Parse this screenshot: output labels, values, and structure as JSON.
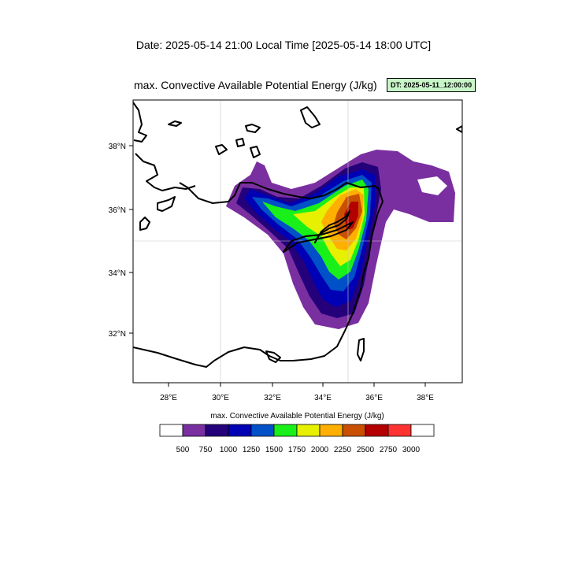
{
  "header": {
    "date_line": "Date: 2025-05-14  21:00 Local Time [2025-05-14  18:00 UTC]",
    "map_title": "max. Convective Available Potential Energy   (J/kg)",
    "dt_badge": "DT: 2025-05-11_12:00:00"
  },
  "axes": {
    "x_ticks": [
      "28°E",
      "30°E",
      "32°E",
      "34°E",
      "36°E",
      "38°E"
    ],
    "y_ticks": [
      "38°N",
      "36°N",
      "34°N",
      "32°N"
    ]
  },
  "colorbar": {
    "title": "max. Convective Available Potential Energy  (J/kg)",
    "levels": [
      "500",
      "750",
      "1000",
      "1250",
      "1500",
      "1750",
      "2000",
      "2250",
      "2500",
      "2750",
      "3000"
    ],
    "colors": [
      "#ffffff",
      "#7a2fa0",
      "#24007a",
      "#0000b4",
      "#0050c8",
      "#19f019",
      "#e6f000",
      "#ffaf00",
      "#c85000",
      "#b40000",
      "#ff3232",
      "#ffffff"
    ]
  },
  "colors": {
    "purple": "#7a2fa0",
    "navy": "#24007a",
    "blue": "#0000b4",
    "mid_blue": "#0050c8",
    "green": "#19f019",
    "yellow": "#e6f000",
    "orange": "#ffaf00",
    "brown": "#c85000",
    "red": "#b40000",
    "coast": "#000000"
  }
}
